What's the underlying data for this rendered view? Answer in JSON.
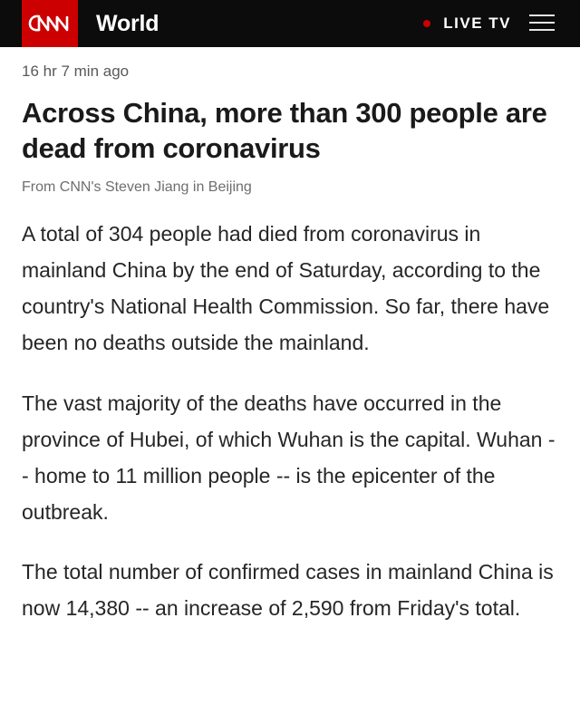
{
  "header": {
    "logo_text": "CNN",
    "section": "World",
    "live_label": "LIVE TV",
    "accent_color": "#cc0000",
    "menu_icon": "hamburger-menu-icon"
  },
  "post": {
    "timestamp": "16 hr 7 min ago",
    "headline": "Across China, more than 300 people are dead from coronavirus",
    "byline": "From CNN's Steven Jiang in Beijing",
    "paragraphs": [
      "A total of 304 people had died from coronavirus in mainland China by the end of Saturday, according to the country's National Health Commission. So far, there have been no deaths outside the mainland.",
      "The vast majority of the deaths have occurred in the province of Hubei, of which Wuhan is the capital. Wuhan -- home to 11 million people -- is the epicenter of the outbreak.",
      "The total number of confirmed cases in mainland China is now 14,380 -- an increase of 2,590 from Friday's total."
    ]
  }
}
